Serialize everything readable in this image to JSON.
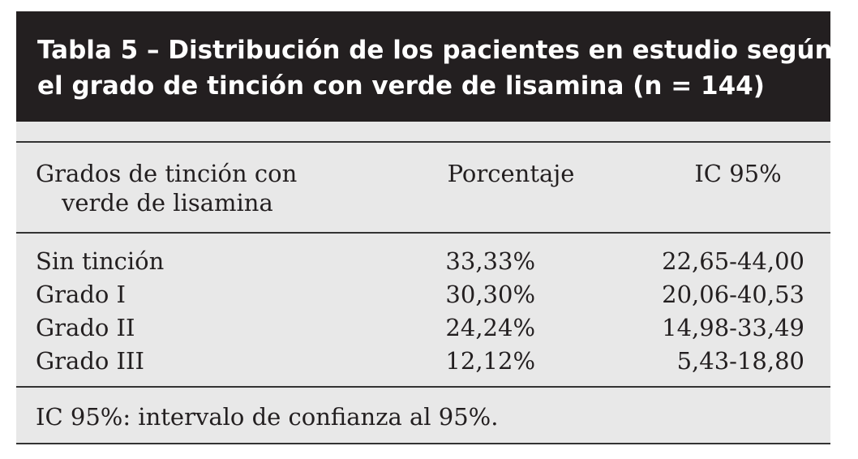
{
  "table": {
    "title_line1": "Tabla 5 – Distribución de los pacientes en estudio según",
    "title_line2": "el grado de tinción con verde de lisamina (n = 144)",
    "headers": {
      "grade_line1": "Grados de tinción con",
      "grade_line2": "verde de lisamina",
      "percentage": "Porcentaje",
      "ci": "IC 95%"
    },
    "rows": [
      {
        "grade": "Sin tinción",
        "percentage": "33,33%",
        "ci": "22,65-44,00"
      },
      {
        "grade": "Grado I",
        "percentage": "30,30%",
        "ci": "20,06-40,53"
      },
      {
        "grade": "Grado II",
        "percentage": "24,24%",
        "ci": "14,98-33,49"
      },
      {
        "grade": "Grado III",
        "percentage": "12,12%",
        "ci": "5,43-18,80"
      }
    ],
    "footnote": "IC 95%: intervalo de confianza al 95%."
  }
}
